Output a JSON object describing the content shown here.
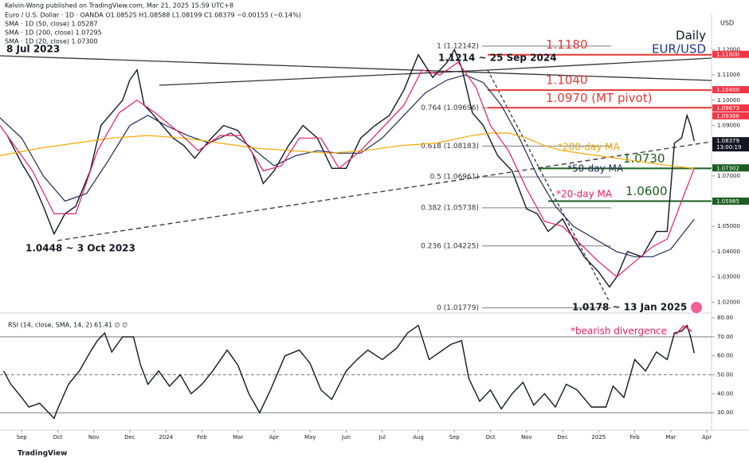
{
  "chart_data": [
    {
      "type": "line",
      "title": "Daily",
      "subtitle": "EUR/USD",
      "publisher": "Kelvin-Wong published on TradingView.com, Mar 21, 2025 15:59 UTC+8",
      "legend_lines": [
        "Euro / U.S. Dollar · 1D · OANDA  O1.08525 H1.08588 L1.08199 C1.08379 −0.00155 (−0.14%)",
        "SMA · 1D (50, close)  1.05287",
        "SMA · 1D (200, close)  1.07295",
        "SMA · 1D (20, close)  1.07300"
      ],
      "currency_label": "USD",
      "xlim": [
        -0.6,
        19.13
      ],
      "ylim": [
        1.016,
        1.134
      ],
      "yticks": [
        {
          "value": 1.12,
          "label": "1.12000"
        },
        {
          "value": 1.11,
          "label": "1.11000"
        },
        {
          "value": 1.1,
          "label": "1.10000"
        },
        {
          "value": 1.09,
          "label": "1.09000"
        },
        {
          "value": 1.07,
          "label": "1.07000"
        },
        {
          "value": 1.05,
          "label": "1.05000"
        },
        {
          "value": 1.04,
          "label": "1.04000"
        },
        {
          "value": 1.03,
          "label": "1.03000"
        },
        {
          "value": 1.02,
          "label": "1.02000"
        }
      ],
      "series": [
        {
          "name": "EUR/USD",
          "color": "#131722",
          "x": [
            -0.4,
            0,
            0.3,
            0.6,
            0.9,
            1.2,
            1.5,
            1.9,
            2.2,
            2.5,
            2.8,
            3.0,
            3.2,
            3.4,
            3.6,
            3.9,
            4.2,
            4.5,
            4.8,
            5.2,
            5.6,
            6.0,
            6.4,
            6.7,
            7.0,
            7.4,
            7.8,
            8.2,
            8.6,
            9.0,
            9.4,
            9.8,
            10.2,
            10.6,
            11.0,
            11.4,
            11.8,
            12.0,
            12.2,
            12.5,
            12.8,
            13.2,
            13.6,
            14.0,
            14.3,
            14.6,
            15.0,
            15.3,
            15.6,
            16.0,
            16.3,
            16.5,
            16.8,
            17.2,
            17.6,
            17.9,
            18.1,
            18.3,
            18.45,
            18.55,
            18.65
          ],
          "values": [
            1.086,
            1.075,
            1.068,
            1.058,
            1.047,
            1.055,
            1.058,
            1.072,
            1.09,
            1.095,
            1.1,
            1.108,
            1.112,
            1.098,
            1.095,
            1.09,
            1.085,
            1.082,
            1.077,
            1.084,
            1.09,
            1.088,
            1.079,
            1.067,
            1.072,
            1.082,
            1.09,
            1.085,
            1.073,
            1.073,
            1.085,
            1.09,
            1.094,
            1.104,
            1.118,
            1.109,
            1.115,
            1.12,
            1.113,
            1.095,
            1.09,
            1.078,
            1.072,
            1.057,
            1.055,
            1.048,
            1.053,
            1.045,
            1.038,
            1.032,
            1.026,
            1.03,
            1.04,
            1.038,
            1.048,
            1.048,
            1.083,
            1.085,
            1.094,
            1.09,
            1.0838
          ]
        },
        {
          "name": "SMA 50",
          "color": "#1e2a5a",
          "x": [
            -0.6,
            0,
            0.6,
            1.2,
            1.8,
            2.4,
            3.0,
            3.5,
            4.0,
            4.6,
            5.2,
            5.8,
            6.4,
            7.0,
            7.6,
            8.2,
            8.8,
            9.4,
            10.0,
            10.6,
            11.2,
            11.8,
            12.3,
            12.8,
            13.3,
            13.8,
            14.3,
            14.8,
            15.3,
            15.9,
            16.5,
            17.0,
            17.5,
            18.0,
            18.65
          ],
          "values": [
            1.093,
            1.085,
            1.07,
            1.06,
            1.063,
            1.076,
            1.09,
            1.094,
            1.09,
            1.086,
            1.083,
            1.087,
            1.081,
            1.074,
            1.078,
            1.08,
            1.079,
            1.079,
            1.085,
            1.094,
            1.103,
            1.108,
            1.11,
            1.107,
            1.098,
            1.085,
            1.07,
            1.058,
            1.05,
            1.045,
            1.04,
            1.038,
            1.038,
            1.041,
            1.05287
          ]
        },
        {
          "name": "SMA 200",
          "color": "#f2a900",
          "x": [
            -0.6,
            0.5,
            1.5,
            2.5,
            3.5,
            4.5,
            5.5,
            6.5,
            7.5,
            8.5,
            9.5,
            10.5,
            11.5,
            12.5,
            13.0,
            13.5,
            14.0,
            14.5,
            15.0,
            16.0,
            17.0,
            18.0,
            18.65
          ],
          "values": [
            1.078,
            1.081,
            1.083,
            1.085,
            1.086,
            1.085,
            1.083,
            1.081,
            1.08,
            1.079,
            1.08,
            1.082,
            1.083,
            1.086,
            1.087,
            1.087,
            1.085,
            1.082,
            1.08,
            1.078,
            1.076,
            1.074,
            1.07295
          ]
        },
        {
          "name": "SMA 20",
          "color": "#e91e63",
          "x": [
            -0.6,
            0.3,
            0.9,
            1.5,
            2.1,
            2.7,
            3.2,
            3.7,
            4.3,
            4.9,
            5.5,
            6.1,
            6.7,
            7.2,
            7.7,
            8.3,
            8.8,
            9.4,
            10.0,
            10.6,
            11.1,
            11.6,
            12.1,
            12.6,
            13.0,
            13.5,
            14.0,
            14.5,
            15.0,
            15.5,
            16.0,
            16.5,
            17.0,
            17.5,
            17.9,
            18.3,
            18.65
          ],
          "values": [
            1.09,
            1.072,
            1.055,
            1.055,
            1.08,
            1.095,
            1.1,
            1.095,
            1.088,
            1.08,
            1.086,
            1.086,
            1.072,
            1.074,
            1.085,
            1.085,
            1.073,
            1.08,
            1.089,
            1.098,
            1.112,
            1.11,
            1.115,
            1.105,
            1.09,
            1.08,
            1.065,
            1.052,
            1.05,
            1.043,
            1.036,
            1.03,
            1.036,
            1.042,
            1.045,
            1.06,
            1.073
          ]
        }
      ],
      "levels": [
        {
          "value": 1.118,
          "label": "1.1180",
          "color": "#e53935"
        },
        {
          "value": 1.104,
          "label": "1.1040",
          "color": "#e53935"
        },
        {
          "value": 1.097,
          "label": "1.0970 (MT pivot)",
          "color": "#e53935"
        },
        {
          "value": 1.073,
          "label": "1.0730",
          "color": "#1b5e20"
        },
        {
          "value": 1.06,
          "label": "1.0600",
          "color": "#1b5e20"
        }
      ],
      "fib": [
        {
          "value": 1.12142,
          "label": "1 (1.12142)"
        },
        {
          "value": 1.09696,
          "label": "0.764 (1.09696)"
        },
        {
          "value": 1.08183,
          "label": "0.618 (1.08183)"
        },
        {
          "value": 1.06961,
          "label": "0.5 (1.06961)"
        },
        {
          "value": 1.05738,
          "label": "0.382 (1.05738)"
        },
        {
          "value": 1.04225,
          "label": "0.236 (1.04225)"
        },
        {
          "value": 1.01779,
          "label": "0 (1.01779)"
        }
      ],
      "price_tags": [
        {
          "value": 1.118,
          "label": "1.11800",
          "color": "#f23645"
        },
        {
          "value": 1.104,
          "label": "1.10400",
          "color": "#f23645"
        },
        {
          "value": 1.09673,
          "label": "1.09673",
          "color": "#f23645"
        },
        {
          "value": 1.09366,
          "label": "1.09366",
          "color": "#f23645"
        },
        {
          "value": 1.08379,
          "label": "1.08379",
          "color": "#131722",
          "countdown": "13:00:19"
        },
        {
          "value": 1.07302,
          "label": "1.07302",
          "color": "#1b5e20"
        },
        {
          "value": 1.05985,
          "label": "1.05985",
          "color": "#1b5e20"
        }
      ],
      "annotations": [
        {
          "text": "8 Jul 2023",
          "color": "#131722"
        },
        {
          "text": "1.1214 ~ 25 Sep 2024",
          "color": "#131722"
        },
        {
          "text": "*200-day MA",
          "color": "#f2a900"
        },
        {
          "text": "*50-day MA",
          "color": "#1e2a5a"
        },
        {
          "text": "*20-day MA",
          "color": "#e91e63"
        },
        {
          "text": "1.0448 ~ 3 Oct 2023",
          "color": "#131722"
        },
        {
          "text": "1.0178 ~ 13 Jan 2025",
          "color": "#131722"
        }
      ]
    },
    {
      "type": "line",
      "title": "RSI (14, close, SMA, 14, 2)  61.41  ∅  ∅",
      "xlim": [
        -0.6,
        19.13
      ],
      "ylim": [
        20.8,
        81.7
      ],
      "yticks": [
        {
          "value": 80,
          "label": "80.00"
        },
        {
          "value": 70,
          "label": "70.00"
        },
        {
          "value": 60,
          "label": "60.00"
        },
        {
          "value": 50,
          "label": "50.00"
        },
        {
          "value": 40,
          "label": "40.00"
        },
        {
          "value": 30,
          "label": "30.00"
        }
      ],
      "levels": [
        70,
        50,
        30
      ],
      "xticks": [
        {
          "value": 0,
          "label": "Sep"
        },
        {
          "value": 1,
          "label": "Oct"
        },
        {
          "value": 2,
          "label": "Nov"
        },
        {
          "value": 3,
          "label": "Dec"
        },
        {
          "value": 4,
          "label": "2024"
        },
        {
          "value": 5,
          "label": "Feb"
        },
        {
          "value": 6,
          "label": "Mar"
        },
        {
          "value": 7,
          "label": "Apr"
        },
        {
          "value": 8,
          "label": "May"
        },
        {
          "value": 9,
          "label": "Jun"
        },
        {
          "value": 10,
          "label": "Jul"
        },
        {
          "value": 11,
          "label": "Aug"
        },
        {
          "value": 12,
          "label": "Sep"
        },
        {
          "value": 13,
          "label": "Oct"
        },
        {
          "value": 14,
          "label": "Nov"
        },
        {
          "value": 15,
          "label": "Dec"
        },
        {
          "value": 16,
          "label": "2025"
        },
        {
          "value": 17,
          "label": "Feb"
        },
        {
          "value": 18,
          "label": "Mar"
        },
        {
          "value": 19,
          "label": "Apr"
        }
      ],
      "series": [
        {
          "name": "RSI",
          "color": "#131722",
          "x": [
            -0.5,
            -0.3,
            0,
            0.2,
            0.5,
            0.9,
            1.0,
            1.3,
            1.6,
            1.9,
            2.1,
            2.3,
            2.5,
            2.8,
            3.1,
            3.3,
            3.5,
            3.8,
            4.1,
            4.4,
            4.7,
            5.0,
            5.3,
            5.7,
            6.0,
            6.3,
            6.6,
            6.9,
            7.3,
            7.7,
            8.0,
            8.3,
            8.6,
            9.0,
            9.3,
            9.6,
            10.0,
            10.4,
            10.7,
            11.0,
            11.3,
            11.6,
            11.9,
            12.2,
            12.4,
            12.7,
            13.0,
            13.3,
            13.6,
            13.9,
            14.2,
            14.5,
            14.8,
            15.1,
            15.4,
            15.8,
            16.2,
            16.4,
            16.7,
            17.0,
            17.3,
            17.6,
            17.9,
            18.1,
            18.3,
            18.45,
            18.55,
            18.65
          ],
          "values": [
            52,
            45,
            38,
            33,
            35,
            27,
            32,
            45,
            52,
            62,
            68,
            72,
            62,
            70,
            70,
            55,
            45,
            52,
            44,
            50,
            40,
            45,
            52,
            63,
            55,
            40,
            30,
            42,
            60,
            63,
            56,
            42,
            37,
            52,
            58,
            63,
            58,
            64,
            72,
            76,
            58,
            62,
            66,
            68,
            48,
            36,
            42,
            32,
            40,
            46,
            34,
            40,
            33,
            45,
            42,
            33,
            33,
            44,
            38,
            58,
            52,
            62,
            58,
            72,
            73,
            76,
            70,
            61.41
          ]
        }
      ],
      "annotations": [
        {
          "text": "*bearish divergence",
          "color": "#e91e63"
        }
      ]
    },
    {
      "footer": "TradingView"
    }
  ]
}
